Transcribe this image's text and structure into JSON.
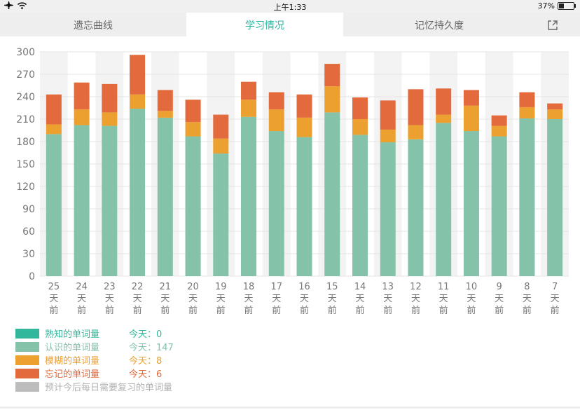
{
  "status_bar": {
    "time": "上午1:33",
    "battery": "37%",
    "battery_level": 0.37,
    "icons": [
      "airplane-icon",
      "wifi-icon",
      "battery-icon"
    ]
  },
  "tabs": [
    {
      "label": "遗忘曲线",
      "active": false
    },
    {
      "label": "学习情况",
      "active": true
    },
    {
      "label": "记忆持久度",
      "active": false
    }
  ],
  "share_icon": "share-icon",
  "colors": {
    "familiar": "#33b79c",
    "known": "#84c2aa",
    "fuzzy": "#eca02f",
    "forgot": "#e26a3d",
    "review": "#bdbdbd",
    "accent": "#27b6a0"
  },
  "chart_data": {
    "type": "bar",
    "stacked": true,
    "categories": [
      "25天前",
      "24天前",
      "23天前",
      "22天前",
      "21天前",
      "20天前",
      "19天前",
      "18天前",
      "17天前",
      "16天前",
      "15天前",
      "14天前",
      "13天前",
      "12天前",
      "11天前",
      "10天前",
      "9天前",
      "8天前",
      "7天前"
    ],
    "series": [
      {
        "name": "熟知的单词量",
        "values": [
          0,
          0,
          0,
          0,
          0,
          0,
          0,
          0,
          0,
          0,
          0,
          0,
          0,
          0,
          0,
          0,
          0,
          0,
          0
        ]
      },
      {
        "name": "认识的单词量",
        "values": [
          190,
          202,
          201,
          224,
          212,
          187,
          164,
          213,
          194,
          186,
          219,
          189,
          179,
          183,
          205,
          194,
          187,
          211,
          210
        ]
      },
      {
        "name": "模糊的单词量",
        "values": [
          13,
          21,
          18,
          19,
          9,
          19,
          20,
          23,
          29,
          26,
          35,
          21,
          17,
          19,
          11,
          34,
          14,
          15,
          13
        ]
      },
      {
        "name": "忘记的单词量",
        "values": [
          40,
          36,
          38,
          53,
          28,
          30,
          32,
          24,
          23,
          31,
          30,
          29,
          39,
          48,
          35,
          21,
          14,
          20,
          8
        ]
      }
    ],
    "ylim": [
      0,
      300
    ],
    "yticks": [
      0,
      30,
      60,
      90,
      120,
      150,
      180,
      210,
      240,
      270,
      300
    ],
    "grid": true
  },
  "legend": [
    {
      "label": "熟知的单词量",
      "today": "今天：0",
      "color": "#33b79c"
    },
    {
      "label": "认识的单词量",
      "today": "今天：147",
      "color": "#84c2aa"
    },
    {
      "label": "模糊的单词量",
      "today": "今天：8",
      "color": "#eca02f"
    },
    {
      "label": "忘记的单词量",
      "today": "今天：6",
      "color": "#e26a3d"
    },
    {
      "label": "预计今后每日需要复习的单词量",
      "today": "",
      "color": "#bdbdbd"
    }
  ]
}
